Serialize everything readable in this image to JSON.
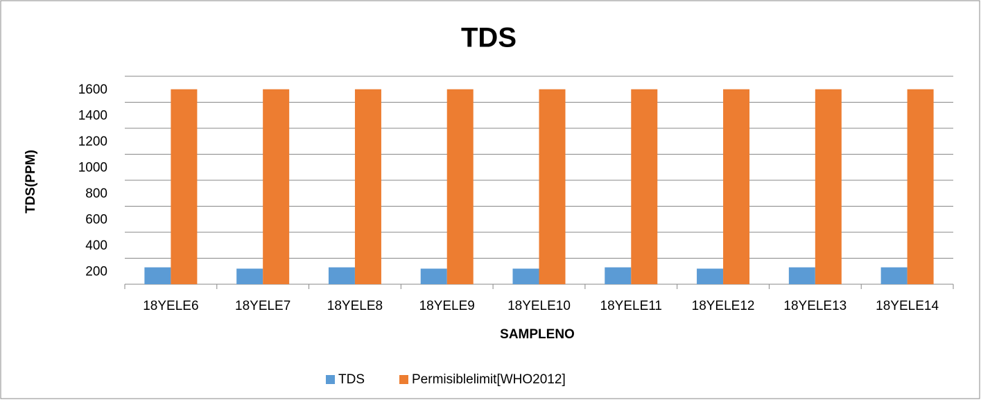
{
  "chart_data": {
    "type": "bar",
    "title": "TDS",
    "x_label": "SAMPLENO",
    "y_label": "TDS(PPM)",
    "categories": [
      "18YELE6",
      "18YELE7",
      "18YELE8",
      "18YELE9",
      "18YELE10",
      "18YELE11",
      "18YELE12",
      "18YELE13",
      "18YELE14"
    ],
    "series": [
      {
        "name": "TDS",
        "color": "#5b9bd5",
        "values": [
          130,
          120,
          130,
          120,
          120,
          130,
          120,
          130,
          130
        ]
      },
      {
        "name": "Permisiblelimit[WHO2012]",
        "color": "#ed7d31",
        "values": [
          1500,
          1500,
          1500,
          1500,
          1500,
          1500,
          1500,
          1500,
          1500
        ]
      }
    ],
    "ylim": [
      0,
      1600
    ],
    "yticks": [
      200,
      400,
      600,
      800,
      1000,
      1200,
      1400,
      1600
    ],
    "grid": true,
    "legend": "bottom"
  }
}
